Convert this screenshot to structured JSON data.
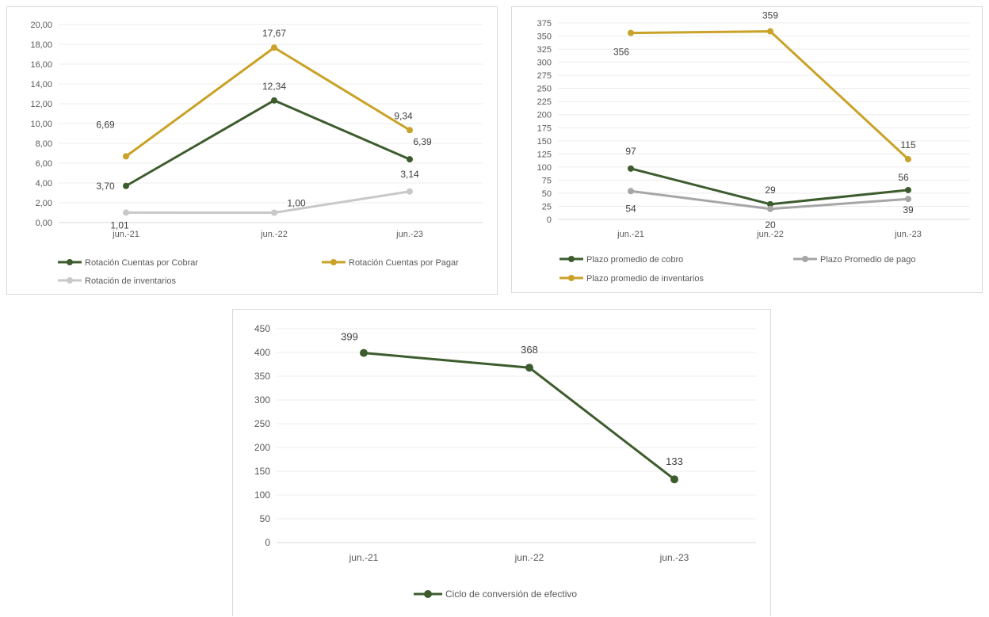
{
  "chart_data": [
    {
      "id": "chart1",
      "type": "line",
      "categories": [
        "jun.-21",
        "jun.-22",
        "jun.-23"
      ],
      "ylim": [
        0,
        20
      ],
      "ystep": 2,
      "ytick_decimals": 2,
      "decimal_comma": true,
      "grid": true,
      "legend_position": "bottom",
      "series": [
        {
          "name": "Rotación Cuentas por Cobrar",
          "values": [
            3.7,
            12.34,
            6.39
          ],
          "labels": [
            "3,70",
            "12,34",
            "6,39"
          ],
          "color": "#3d5c2e"
        },
        {
          "name": "Rotación Cuentas por Pagar",
          "values": [
            6.69,
            17.67,
            9.34
          ],
          "labels": [
            "6,69",
            "17,67",
            "9,34"
          ],
          "color": "#c9a227"
        },
        {
          "name": "Rotación de inventarios",
          "values": [
            1.01,
            1.0,
            3.14
          ],
          "labels": [
            "1,01",
            "1,00",
            "3,14"
          ],
          "color": "#c8c8c8"
        }
      ]
    },
    {
      "id": "chart2",
      "type": "line",
      "categories": [
        "jun.-21",
        "jun.-22",
        "jun.-23"
      ],
      "ylim": [
        0,
        375
      ],
      "ystep": 25,
      "ytick_decimals": 0,
      "decimal_comma": false,
      "grid": true,
      "legend_position": "bottom",
      "series": [
        {
          "name": "Plazo promedio de cobro",
          "values": [
            97,
            29,
            56
          ],
          "labels": [
            "97",
            "29",
            "56"
          ],
          "color": "#3d5c2e"
        },
        {
          "name": "Plazo Promedio de pago",
          "values": [
            54,
            20,
            39
          ],
          "labels": [
            "54",
            "20",
            "39"
          ],
          "color": "#a6a6a6"
        },
        {
          "name": "Plazo promedio de inventarios",
          "values": [
            356,
            359,
            115
          ],
          "labels": [
            "356",
            "359",
            "115"
          ],
          "color": "#c9a227"
        }
      ]
    },
    {
      "id": "chart3",
      "type": "line",
      "categories": [
        "jun.-21",
        "jun.-22",
        "jun.-23"
      ],
      "ylim": [
        0,
        450
      ],
      "ystep": 50,
      "ytick_decimals": 0,
      "decimal_comma": false,
      "grid": true,
      "legend_position": "bottom",
      "series": [
        {
          "name": "Ciclo de conversión de efectivo",
          "values": [
            399,
            368,
            133
          ],
          "labels": [
            "399",
            "368",
            "133"
          ],
          "color": "#3d5c2e"
        }
      ]
    }
  ]
}
